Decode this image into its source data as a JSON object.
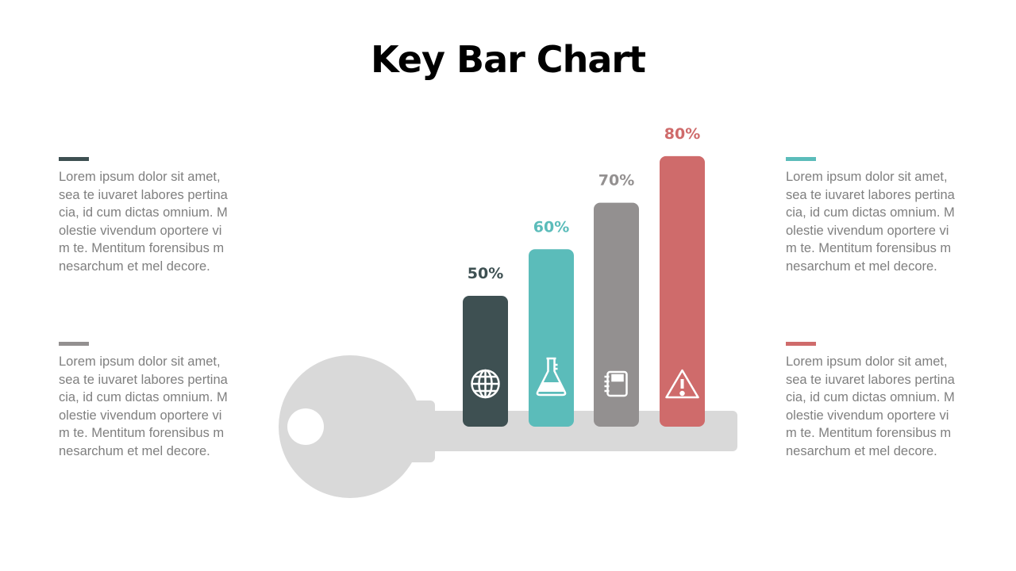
{
  "title": "Key Bar Chart",
  "text_blocks": [
    {
      "accent": "#3e5052",
      "lines": [
        "Lorem ipsum dolor sit amet,",
        "sea te iuvaret labores pertina",
        "cia, id cum dictas omnium. M",
        "olestie vivendum oportere vi",
        "m te. Mentitum forensibus m",
        "nesarchum et mel decore."
      ]
    },
    {
      "accent": "#939090",
      "lines": [
        "Lorem ipsum dolor sit amet,",
        "sea te iuvaret labores pertina",
        "cia, id cum dictas omnium. M",
        "olestie vivendum oportere vi",
        "m te. Mentitum forensibus m",
        "nesarchum et mel decore."
      ]
    },
    {
      "accent": "#5bbcba",
      "lines": [
        "Lorem ipsum dolor sit amet,",
        "sea te iuvaret labores pertina",
        "cia, id cum dictas omnium. M",
        "olestie vivendum oportere vi",
        "m te. Mentitum forensibus m",
        "nesarchum et mel decore."
      ]
    },
    {
      "accent": "#cf6b6b",
      "lines": [
        "Lorem ipsum dolor sit amet,",
        "sea te iuvaret labores pertina",
        "cia, id cum dictas omnium. M",
        "olestie vivendum oportere vi",
        "m te. Mentitum forensibus m",
        "nesarchum et mel decore."
      ]
    }
  ],
  "chart_data": {
    "type": "bar",
    "values": [
      50,
      60,
      70,
      80
    ],
    "labels": [
      "50%",
      "60%",
      "70%",
      "80%"
    ],
    "colors": [
      "#3e5052",
      "#5bbcba",
      "#939090",
      "#cf6b6b"
    ],
    "icons": [
      "globe-icon",
      "flask-icon",
      "notebook-icon",
      "warning-icon"
    ],
    "key_color": "#d9d9d9"
  }
}
